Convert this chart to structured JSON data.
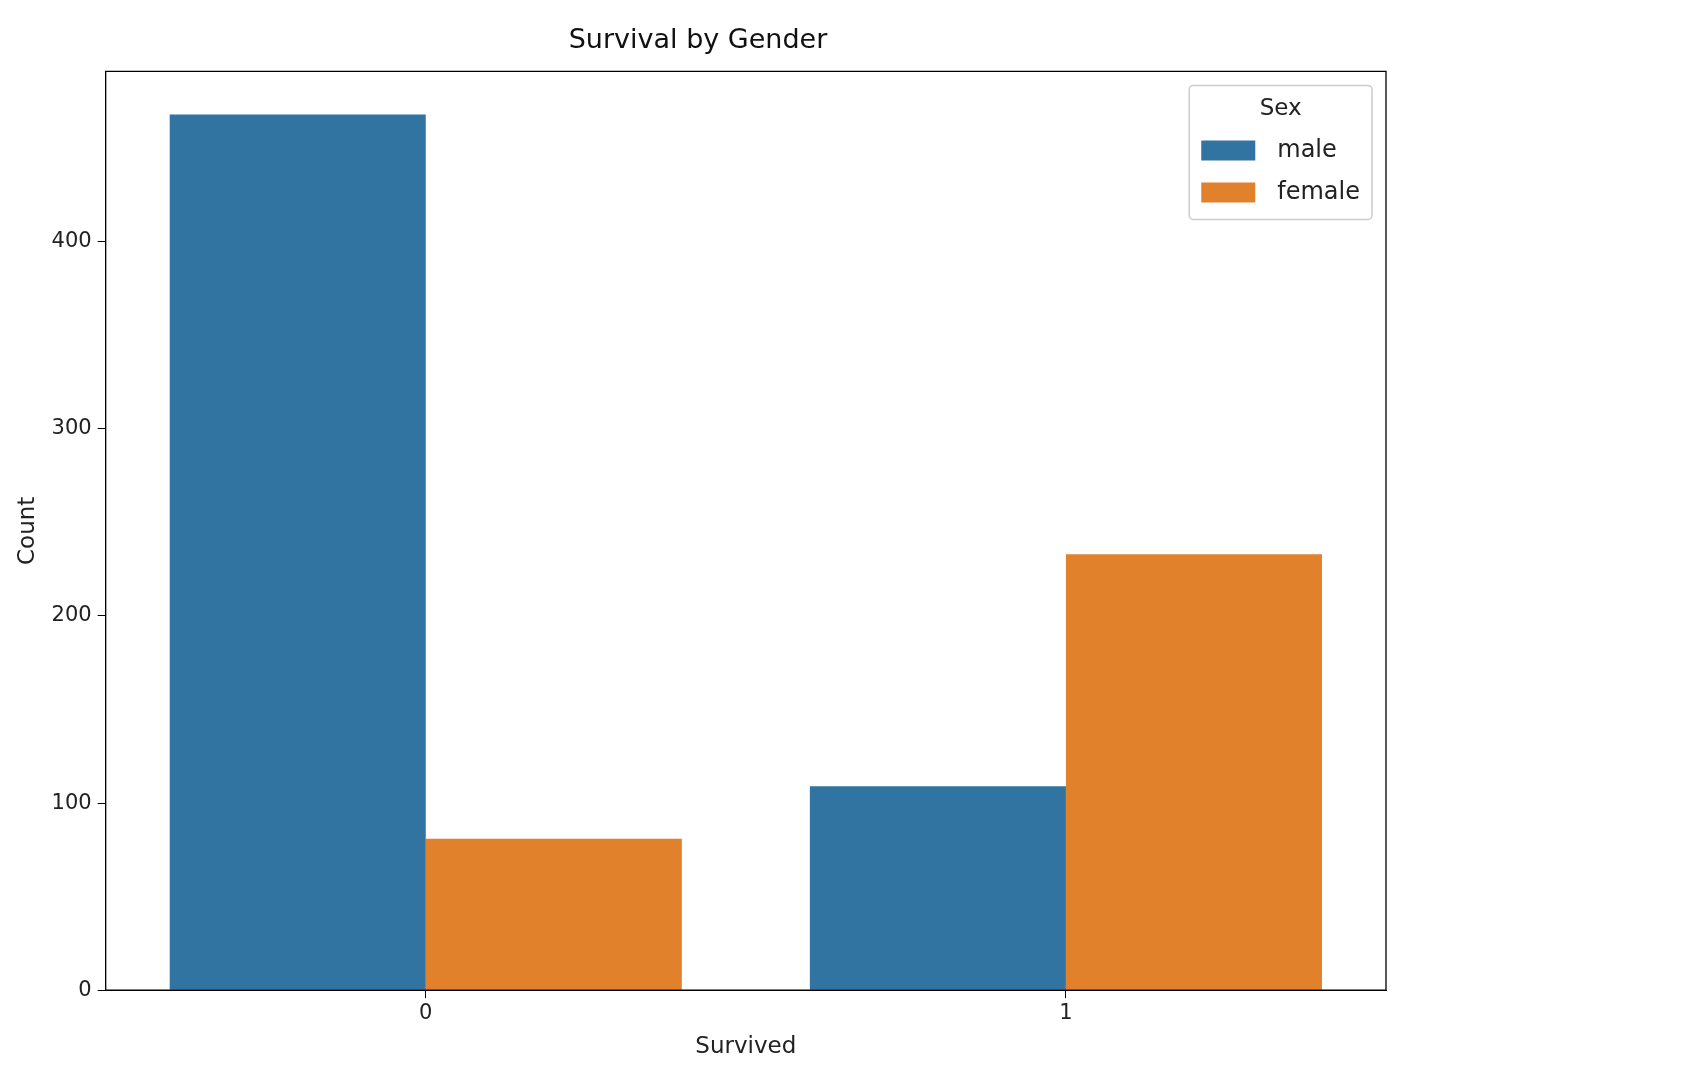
{
  "chart_data": {
    "type": "bar",
    "title": "Survival by Gender",
    "xlabel": "Survived",
    "ylabel": "Count",
    "categories": [
      "0",
      "1"
    ],
    "series": [
      {
        "name": "male",
        "color": "#3274a1",
        "values": [
          468,
          109
        ]
      },
      {
        "name": "female",
        "color": "#e1812c",
        "values": [
          81,
          233
        ]
      }
    ],
    "ylim": [
      0,
      491
    ],
    "yticks": [
      0,
      100,
      200,
      300,
      400
    ],
    "grid": false,
    "legend": "top right",
    "legend_title": "Sex"
  }
}
